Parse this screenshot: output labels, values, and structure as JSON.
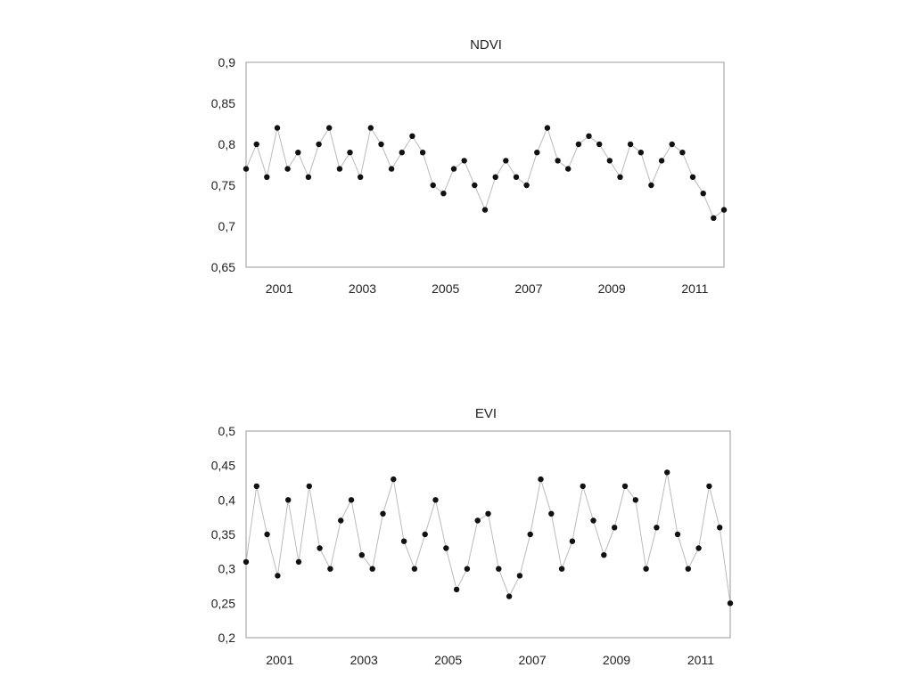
{
  "chart_data": [
    {
      "type": "line",
      "title": "NDVI",
      "xlabel": "",
      "ylabel": "",
      "xlim": [
        2000.2,
        2011.7
      ],
      "ylim": [
        0.65,
        0.9
      ],
      "xticks": [
        2001,
        2003,
        2005,
        2007,
        2009,
        2011
      ],
      "xtick_labels": [
        "2001",
        "2003",
        "2005",
        "2007",
        "2009",
        "2011"
      ],
      "yticks": [
        0.65,
        0.7,
        0.75,
        0.8,
        0.85,
        0.9
      ],
      "ytick_labels": [
        "0,65",
        "0,7",
        "0,75",
        "0,8",
        "0,85",
        "0,9"
      ],
      "grid": false,
      "legend": "none",
      "marker": "filled-circle",
      "line_color": "#bbbbbb",
      "marker_color": "#111111",
      "series": [
        {
          "x": [
            2000.2,
            2000.45,
            2000.7,
            2000.95,
            2001.2,
            2001.45,
            2001.7,
            2001.95,
            2002.2,
            2002.45,
            2002.7,
            2002.95,
            2003.2,
            2003.45,
            2003.7,
            2003.95,
            2004.2,
            2004.45,
            2004.7,
            2004.95,
            2005.2,
            2005.45,
            2005.7,
            2005.95,
            2006.2,
            2006.45,
            2006.7,
            2006.95,
            2007.2,
            2007.45,
            2007.7,
            2007.95,
            2008.2,
            2008.45,
            2008.7,
            2008.95,
            2009.2,
            2009.45,
            2009.7,
            2009.95,
            2010.2,
            2010.45,
            2010.7,
            2010.95,
            2011.2,
            2011.45,
            2011.7
          ],
          "y": [
            0.77,
            0.8,
            0.76,
            0.82,
            0.77,
            0.79,
            0.76,
            0.8,
            0.82,
            0.77,
            0.79,
            0.76,
            0.82,
            0.8,
            0.77,
            0.79,
            0.81,
            0.79,
            0.75,
            0.74,
            0.77,
            0.78,
            0.75,
            0.72,
            0.76,
            0.78,
            0.76,
            0.75,
            0.79,
            0.82,
            0.78,
            0.77,
            0.8,
            0.81,
            0.8,
            0.78,
            0.76,
            0.8,
            0.79,
            0.75,
            0.78,
            0.8,
            0.79,
            0.76,
            0.74,
            0.71,
            0.72
          ]
        }
      ]
    },
    {
      "type": "line",
      "title": "EVI",
      "xlabel": "",
      "ylabel": "",
      "xlim": [
        2000.2,
        2011.7
      ],
      "ylim": [
        0.2,
        0.5
      ],
      "xticks": [
        2001,
        2003,
        2005,
        2007,
        2009,
        2011
      ],
      "xtick_labels": [
        "2001",
        "2003",
        "2005",
        "2007",
        "2009",
        "2011"
      ],
      "yticks": [
        0.2,
        0.25,
        0.3,
        0.35,
        0.4,
        0.45,
        0.5
      ],
      "ytick_labels": [
        "0,2",
        "0,25",
        "0,3",
        "0,35",
        "0,4",
        "0,45",
        "0,5"
      ],
      "grid": false,
      "legend": "none",
      "marker": "filled-circle",
      "line_color": "#bbbbbb",
      "marker_color": "#111111",
      "series": [
        {
          "x": [
            2000.2,
            2000.45,
            2000.7,
            2000.95,
            2001.2,
            2001.45,
            2001.7,
            2001.95,
            2002.2,
            2002.45,
            2002.7,
            2002.95,
            2003.2,
            2003.45,
            2003.7,
            2003.95,
            2004.2,
            2004.45,
            2004.7,
            2004.95,
            2005.2,
            2005.45,
            2005.7,
            2005.95,
            2006.2,
            2006.45,
            2006.7,
            2006.95,
            2007.2,
            2007.45,
            2007.7,
            2007.95,
            2008.2,
            2008.45,
            2008.7,
            2008.95,
            2009.2,
            2009.45,
            2009.7,
            2009.95,
            2010.2,
            2010.45,
            2010.7,
            2010.95,
            2011.2,
            2011.45,
            2011.7
          ],
          "y": [
            0.31,
            0.42,
            0.35,
            0.29,
            0.4,
            0.31,
            0.42,
            0.33,
            0.3,
            0.37,
            0.4,
            0.32,
            0.3,
            0.38,
            0.43,
            0.34,
            0.3,
            0.35,
            0.4,
            0.33,
            0.27,
            0.3,
            0.37,
            0.38,
            0.3,
            0.26,
            0.29,
            0.35,
            0.43,
            0.38,
            0.3,
            0.34,
            0.42,
            0.37,
            0.32,
            0.36,
            0.42,
            0.4,
            0.3,
            0.36,
            0.44,
            0.35,
            0.3,
            0.33,
            0.42,
            0.36,
            0.25
          ]
        }
      ]
    }
  ]
}
